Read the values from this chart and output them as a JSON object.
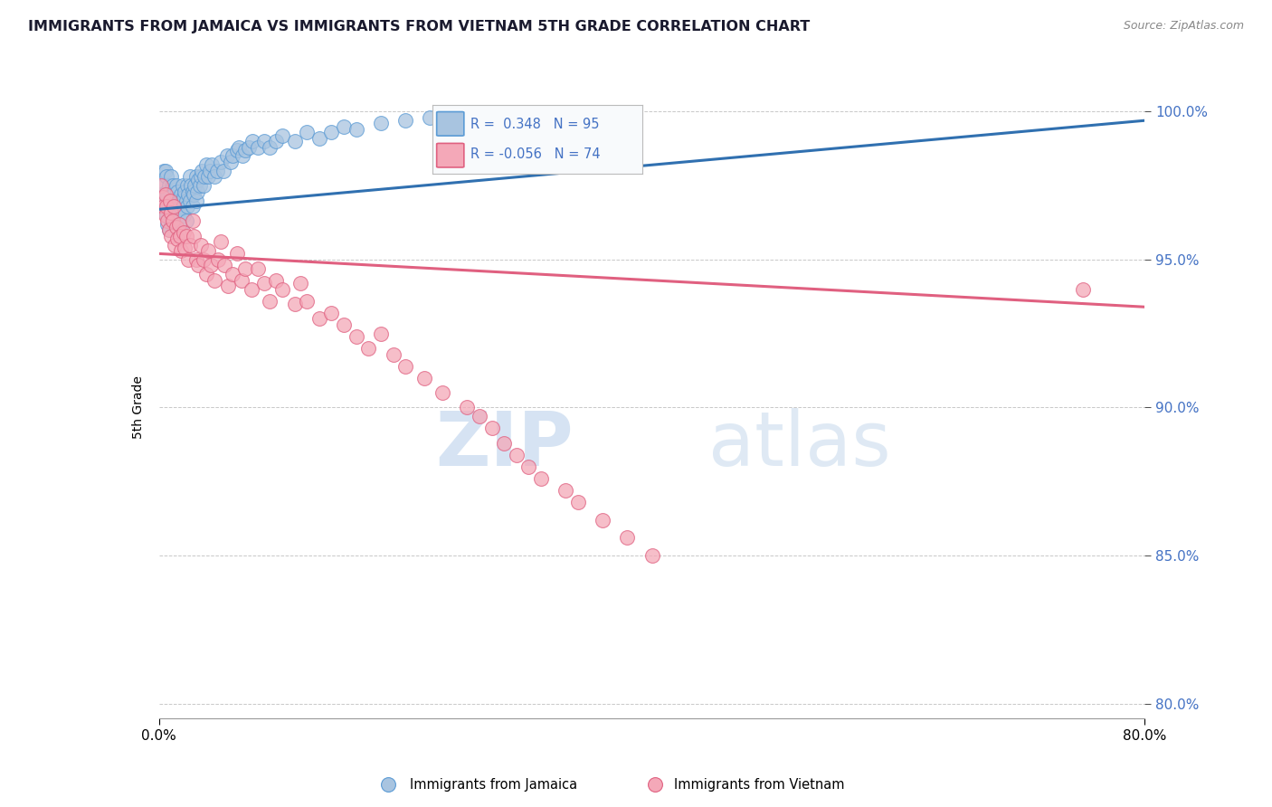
{
  "title": "IMMIGRANTS FROM JAMAICA VS IMMIGRANTS FROM VIETNAM 5TH GRADE CORRELATION CHART",
  "source": "Source: ZipAtlas.com",
  "xlabel_jamaica": "Immigrants from Jamaica",
  "xlabel_vietnam": "Immigrants from Vietnam",
  "ylabel": "5th Grade",
  "xlim": [
    0.0,
    0.8
  ],
  "ylim": [
    0.795,
    1.005
  ],
  "r_jamaica": 0.348,
  "n_jamaica": 95,
  "r_vietnam": -0.056,
  "n_vietnam": 74,
  "color_jamaica": "#a8c4e0",
  "color_vietnam": "#f4a8b8",
  "color_jamaica_edge": "#5b9bd5",
  "color_vietnam_edge": "#e06080",
  "trendline_jamaica_color": "#3070b0",
  "trendline_vietnam_color": "#e06080",
  "axis_label_color": "#4472c4",
  "background_color": "#ffffff",
  "grid_color": "#c8c8c8",
  "title_color": "#1a1a2e",
  "jamaica_trendline": [
    0.967,
    0.997
  ],
  "vietnam_trendline": [
    0.952,
    0.934
  ],
  "jamaica_x": [
    0.002,
    0.003,
    0.004,
    0.004,
    0.005,
    0.005,
    0.005,
    0.006,
    0.006,
    0.006,
    0.007,
    0.007,
    0.008,
    0.008,
    0.008,
    0.009,
    0.009,
    0.01,
    0.01,
    0.01,
    0.011,
    0.011,
    0.012,
    0.012,
    0.013,
    0.013,
    0.014,
    0.014,
    0.015,
    0.015,
    0.016,
    0.016,
    0.017,
    0.018,
    0.018,
    0.019,
    0.019,
    0.02,
    0.02,
    0.021,
    0.022,
    0.022,
    0.023,
    0.023,
    0.024,
    0.025,
    0.025,
    0.026,
    0.027,
    0.027,
    0.028,
    0.029,
    0.03,
    0.03,
    0.031,
    0.032,
    0.033,
    0.034,
    0.035,
    0.036,
    0.037,
    0.038,
    0.04,
    0.041,
    0.043,
    0.045,
    0.047,
    0.05,
    0.052,
    0.055,
    0.058,
    0.06,
    0.063,
    0.065,
    0.068,
    0.07,
    0.073,
    0.076,
    0.08,
    0.085,
    0.09,
    0.095,
    0.1,
    0.11,
    0.12,
    0.13,
    0.14,
    0.15,
    0.16,
    0.18,
    0.2,
    0.22,
    0.25,
    0.27,
    0.3
  ],
  "jamaica_y": [
    0.972,
    0.968,
    0.975,
    0.98,
    0.97,
    0.966,
    0.98,
    0.973,
    0.965,
    0.978,
    0.971,
    0.962,
    0.975,
    0.968,
    0.96,
    0.973,
    0.966,
    0.978,
    0.97,
    0.963,
    0.975,
    0.967,
    0.972,
    0.965,
    0.97,
    0.963,
    0.968,
    0.975,
    0.973,
    0.966,
    0.97,
    0.963,
    0.968,
    0.972,
    0.965,
    0.97,
    0.975,
    0.971,
    0.965,
    0.973,
    0.97,
    0.963,
    0.975,
    0.968,
    0.972,
    0.97,
    0.978,
    0.975,
    0.973,
    0.968,
    0.972,
    0.975,
    0.97,
    0.978,
    0.973,
    0.977,
    0.975,
    0.978,
    0.98,
    0.975,
    0.978,
    0.982,
    0.978,
    0.98,
    0.982,
    0.978,
    0.98,
    0.983,
    0.98,
    0.985,
    0.983,
    0.985,
    0.987,
    0.988,
    0.985,
    0.987,
    0.988,
    0.99,
    0.988,
    0.99,
    0.988,
    0.99,
    0.992,
    0.99,
    0.993,
    0.991,
    0.993,
    0.995,
    0.994,
    0.996,
    0.997,
    0.998,
    0.997,
    0.999,
    0.998
  ],
  "vietnam_x": [
    0.002,
    0.003,
    0.004,
    0.005,
    0.005,
    0.006,
    0.007,
    0.008,
    0.009,
    0.01,
    0.01,
    0.011,
    0.012,
    0.013,
    0.014,
    0.015,
    0.016,
    0.017,
    0.018,
    0.02,
    0.021,
    0.022,
    0.024,
    0.025,
    0.027,
    0.028,
    0.03,
    0.032,
    0.034,
    0.036,
    0.038,
    0.04,
    0.042,
    0.045,
    0.048,
    0.05,
    0.053,
    0.056,
    0.06,
    0.063,
    0.067,
    0.07,
    0.075,
    0.08,
    0.085,
    0.09,
    0.095,
    0.1,
    0.11,
    0.115,
    0.12,
    0.13,
    0.14,
    0.15,
    0.16,
    0.17,
    0.18,
    0.19,
    0.2,
    0.215,
    0.23,
    0.25,
    0.26,
    0.27,
    0.28,
    0.29,
    0.3,
    0.31,
    0.33,
    0.34,
    0.36,
    0.38,
    0.4,
    0.75
  ],
  "vietnam_y": [
    0.975,
    0.971,
    0.968,
    0.965,
    0.972,
    0.968,
    0.963,
    0.96,
    0.97,
    0.966,
    0.958,
    0.963,
    0.968,
    0.955,
    0.961,
    0.957,
    0.962,
    0.958,
    0.953,
    0.959,
    0.954,
    0.958,
    0.95,
    0.955,
    0.963,
    0.958,
    0.95,
    0.948,
    0.955,
    0.95,
    0.945,
    0.953,
    0.948,
    0.943,
    0.95,
    0.956,
    0.948,
    0.941,
    0.945,
    0.952,
    0.943,
    0.947,
    0.94,
    0.947,
    0.942,
    0.936,
    0.943,
    0.94,
    0.935,
    0.942,
    0.936,
    0.93,
    0.932,
    0.928,
    0.924,
    0.92,
    0.925,
    0.918,
    0.914,
    0.91,
    0.905,
    0.9,
    0.897,
    0.893,
    0.888,
    0.884,
    0.88,
    0.876,
    0.872,
    0.868,
    0.862,
    0.856,
    0.85,
    0.94
  ]
}
